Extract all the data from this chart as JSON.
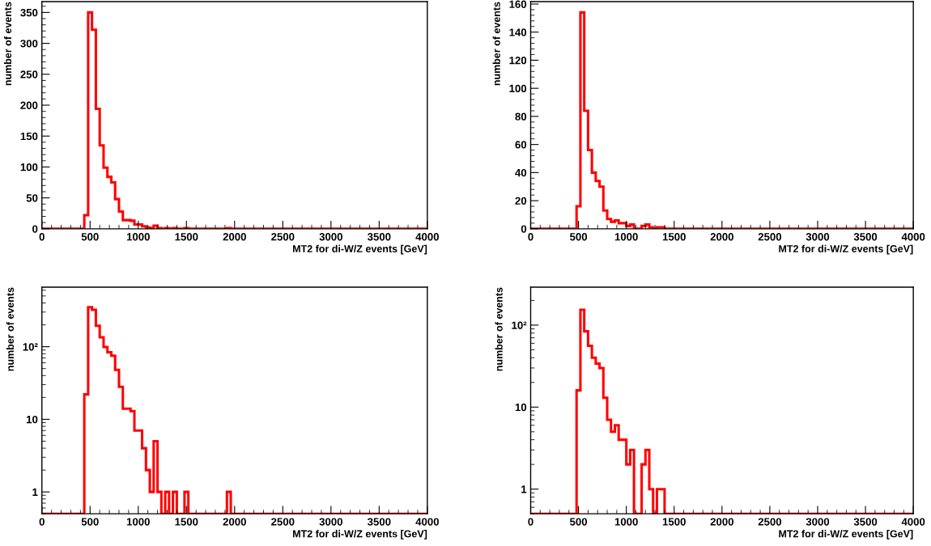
{
  "chart_data": [
    {
      "type": "histogram",
      "xlabel": "MT2 for di-W/Z events [GeV]",
      "ylabel": "number of events",
      "bins": [
        0,
        40,
        80,
        120,
        160,
        200,
        240,
        280,
        320,
        360,
        400,
        440,
        480,
        520,
        560,
        600,
        640,
        680,
        720,
        760,
        800,
        840,
        880,
        920,
        960,
        1000,
        1040,
        1080,
        1120,
        1160,
        1200,
        1240,
        1280,
        1320,
        1360,
        1400,
        1440,
        1480,
        1520,
        1560,
        1600,
        1640,
        1680,
        1720,
        1760,
        1800,
        1840,
        1880,
        1920,
        1960,
        2000,
        2040,
        2080,
        2120,
        2160,
        2200,
        2240,
        2280,
        2320,
        2360,
        2400,
        2440,
        2480,
        2520,
        2560,
        2600,
        2640,
        2680,
        2720,
        2760,
        2800,
        2840,
        2880,
        2920,
        2960,
        3000,
        3040,
        3080,
        3120,
        3160,
        3200,
        3240,
        3280,
        3320,
        3360,
        3400,
        3440,
        3480,
        3520,
        3560,
        3600,
        3640,
        3680,
        3720,
        3760,
        3800,
        3840,
        3880,
        3920,
        3960,
        4000
      ],
      "values": [
        0,
        0,
        0,
        0,
        0,
        0,
        0,
        0,
        0,
        0,
        0,
        22,
        350,
        322,
        194,
        135,
        99,
        84,
        75,
        48,
        28,
        14,
        14,
        13,
        7,
        7,
        4,
        2,
        1,
        5,
        1,
        0,
        1,
        0,
        1,
        0,
        0,
        1,
        0,
        0,
        0,
        0,
        0,
        0,
        0,
        0,
        0,
        0,
        1,
        0,
        0,
        0,
        0,
        0,
        0,
        0,
        0,
        0,
        0,
        0,
        0,
        0,
        0,
        0,
        0,
        0,
        0,
        0,
        0,
        0,
        0,
        0,
        0,
        0,
        0,
        0,
        0,
        0,
        0,
        0,
        0,
        0,
        0,
        0,
        0,
        0,
        0,
        0,
        0,
        0,
        0,
        0,
        0,
        0,
        0,
        0,
        0,
        0,
        0,
        0
      ],
      "color": "#ff0000",
      "xlim": [
        0,
        4000
      ],
      "xticks": [
        0,
        500,
        1000,
        1500,
        2000,
        2500,
        3000,
        3500,
        4000
      ],
      "ylim": [
        0,
        367.5
      ],
      "yticks": [
        0,
        50,
        100,
        150,
        200,
        250,
        300,
        350
      ],
      "grid": false,
      "legend": false
    },
    {
      "type": "histogram",
      "xlabel": "MT2 for di-W/Z events [GeV]",
      "ylabel": "number of events",
      "bins": [
        0,
        40,
        80,
        120,
        160,
        200,
        240,
        280,
        320,
        360,
        400,
        440,
        480,
        520,
        560,
        600,
        640,
        680,
        720,
        760,
        800,
        840,
        880,
        920,
        960,
        1000,
        1040,
        1080,
        1120,
        1160,
        1200,
        1240,
        1280,
        1320,
        1360,
        1400,
        1440,
        1480,
        1520,
        1560,
        1600,
        1640,
        1680,
        1720,
        1760,
        1800,
        1840,
        1880,
        1920,
        1960,
        2000,
        2040,
        2080,
        2120,
        2160,
        2200,
        2240,
        2280,
        2320,
        2360,
        2400,
        2440,
        2480,
        2520,
        2560,
        2600,
        2640,
        2680,
        2720,
        2760,
        2800,
        2840,
        2880,
        2920,
        2960,
        3000,
        3040,
        3080,
        3120,
        3160,
        3200,
        3240,
        3280,
        3320,
        3360,
        3400,
        3440,
        3480,
        3520,
        3560,
        3600,
        3640,
        3680,
        3720,
        3760,
        3800,
        3840,
        3880,
        3920,
        3960,
        4000
      ],
      "values": [
        0,
        0,
        0,
        0,
        0,
        0,
        0,
        0,
        0,
        0,
        0,
        0,
        16,
        154,
        84,
        56,
        40,
        34,
        30,
        13,
        7,
        5,
        6,
        4,
        4,
        2,
        3,
        0,
        0,
        2,
        3,
        1,
        0,
        1,
        1,
        0,
        0,
        0,
        0,
        0,
        0,
        0,
        0,
        0,
        0,
        0,
        0,
        0,
        0,
        0,
        0,
        0,
        0,
        0,
        0,
        0,
        0,
        0,
        0,
        0,
        0,
        0,
        0,
        0,
        0,
        0,
        0,
        0,
        0,
        0,
        0,
        0,
        0,
        0,
        0,
        0,
        0,
        0,
        0,
        0,
        0,
        0,
        0,
        0,
        0,
        0,
        0,
        0,
        0,
        0,
        0,
        0,
        0,
        0,
        0,
        0,
        0,
        0,
        0,
        0
      ],
      "color": "#ff0000",
      "xlim": [
        0,
        4000
      ],
      "xticks": [
        0,
        500,
        1000,
        1500,
        2000,
        2500,
        3000,
        3500,
        4000
      ],
      "ylim": [
        0,
        161.7
      ],
      "yticks": [
        0,
        20,
        40,
        60,
        80,
        100,
        120,
        140,
        160
      ],
      "grid": false,
      "legend": false
    },
    {
      "type": "histogram",
      "xlabel": "MT2 for di-W/Z events [GeV]",
      "ylabel": "number of events",
      "bins": [
        0,
        40,
        80,
        120,
        160,
        200,
        240,
        280,
        320,
        360,
        400,
        440,
        480,
        520,
        560,
        600,
        640,
        680,
        720,
        760,
        800,
        840,
        880,
        920,
        960,
        1000,
        1040,
        1080,
        1120,
        1160,
        1200,
        1240,
        1280,
        1320,
        1360,
        1400,
        1440,
        1480,
        1520,
        1560,
        1600,
        1640,
        1680,
        1720,
        1760,
        1800,
        1840,
        1880,
        1920,
        1960,
        2000,
        2040,
        2080,
        2120,
        2160,
        2200,
        2240,
        2280,
        2320,
        2360,
        2400,
        2440,
        2480,
        2520,
        2560,
        2600,
        2640,
        2680,
        2720,
        2760,
        2800,
        2840,
        2880,
        2920,
        2960,
        3000,
        3040,
        3080,
        3120,
        3160,
        3200,
        3240,
        3280,
        3320,
        3360,
        3400,
        3440,
        3480,
        3520,
        3560,
        3600,
        3640,
        3680,
        3720,
        3760,
        3800,
        3840,
        3880,
        3920,
        3960,
        4000
      ],
      "values": [
        null,
        null,
        null,
        null,
        null,
        null,
        null,
        null,
        null,
        null,
        null,
        22,
        350,
        322,
        194,
        135,
        99,
        84,
        75,
        48,
        28,
        14,
        14,
        13,
        7,
        7,
        4,
        2,
        1,
        5,
        1,
        null,
        1,
        null,
        1,
        null,
        null,
        1,
        null,
        null,
        null,
        null,
        null,
        null,
        null,
        null,
        null,
        null,
        1,
        null,
        null,
        null,
        null,
        null,
        null,
        null,
        null,
        null,
        null,
        null,
        null,
        null,
        null,
        null,
        null,
        null,
        null,
        null,
        null,
        null,
        null,
        null,
        null,
        null,
        null,
        null,
        null,
        null,
        null,
        null,
        null,
        null,
        null,
        null,
        null,
        null,
        null,
        null,
        null,
        null,
        null,
        null,
        null,
        null,
        null,
        null,
        null,
        null,
        null,
        null
      ],
      "color": "#ff0000",
      "log": "y",
      "xlim": [
        0,
        4000
      ],
      "xticks": [
        0,
        500,
        1000,
        1500,
        2000,
        2500,
        3000,
        3500,
        4000
      ],
      "ylim": [
        0.5,
        660
      ],
      "yticks": [
        1,
        10,
        {
          "value": 100,
          "label": "10²"
        }
      ],
      "grid": false,
      "legend": false
    },
    {
      "type": "histogram",
      "xlabel": "MT2 for di-W/Z events [GeV]",
      "ylabel": "number of events",
      "bins": [
        0,
        40,
        80,
        120,
        160,
        200,
        240,
        280,
        320,
        360,
        400,
        440,
        480,
        520,
        560,
        600,
        640,
        680,
        720,
        760,
        800,
        840,
        880,
        920,
        960,
        1000,
        1040,
        1080,
        1120,
        1160,
        1200,
        1240,
        1280,
        1320,
        1360,
        1400,
        1440,
        1480,
        1520,
        1560,
        1600,
        1640,
        1680,
        1720,
        1760,
        1800,
        1840,
        1880,
        1920,
        1960,
        2000,
        2040,
        2080,
        2120,
        2160,
        2200,
        2240,
        2280,
        2320,
        2360,
        2400,
        2440,
        2480,
        2520,
        2560,
        2600,
        2640,
        2680,
        2720,
        2760,
        2800,
        2840,
        2880,
        2920,
        2960,
        3000,
        3040,
        3080,
        3120,
        3160,
        3200,
        3240,
        3280,
        3320,
        3360,
        3400,
        3440,
        3480,
        3520,
        3560,
        3600,
        3640,
        3680,
        3720,
        3760,
        3800,
        3840,
        3880,
        3920,
        3960,
        4000
      ],
      "values": [
        null,
        null,
        null,
        null,
        null,
        null,
        null,
        null,
        null,
        null,
        null,
        null,
        16,
        154,
        84,
        56,
        40,
        34,
        30,
        13,
        7,
        5,
        6,
        4,
        4,
        2,
        3,
        null,
        null,
        2,
        3,
        1,
        null,
        1,
        1,
        null,
        null,
        null,
        null,
        null,
        null,
        null,
        null,
        null,
        null,
        null,
        null,
        null,
        null,
        null,
        null,
        null,
        null,
        null,
        null,
        null,
        null,
        null,
        null,
        null,
        null,
        null,
        null,
        null,
        null,
        null,
        null,
        null,
        null,
        null,
        null,
        null,
        null,
        null,
        null,
        null,
        null,
        null,
        null,
        null,
        null,
        null,
        null,
        null,
        null,
        null,
        null,
        null,
        null,
        null,
        null,
        null,
        null,
        null,
        null,
        null,
        null,
        null,
        null,
        null
      ],
      "color": "#ff0000",
      "log": "y",
      "xlim": [
        0,
        4000
      ],
      "xticks": [
        0,
        500,
        1000,
        1500,
        2000,
        2500,
        3000,
        3500,
        4000
      ],
      "ylim": [
        0.5,
        290
      ],
      "yticks": [
        1,
        10,
        {
          "value": 100,
          "label": "10²"
        }
      ],
      "grid": false,
      "legend": false
    }
  ]
}
